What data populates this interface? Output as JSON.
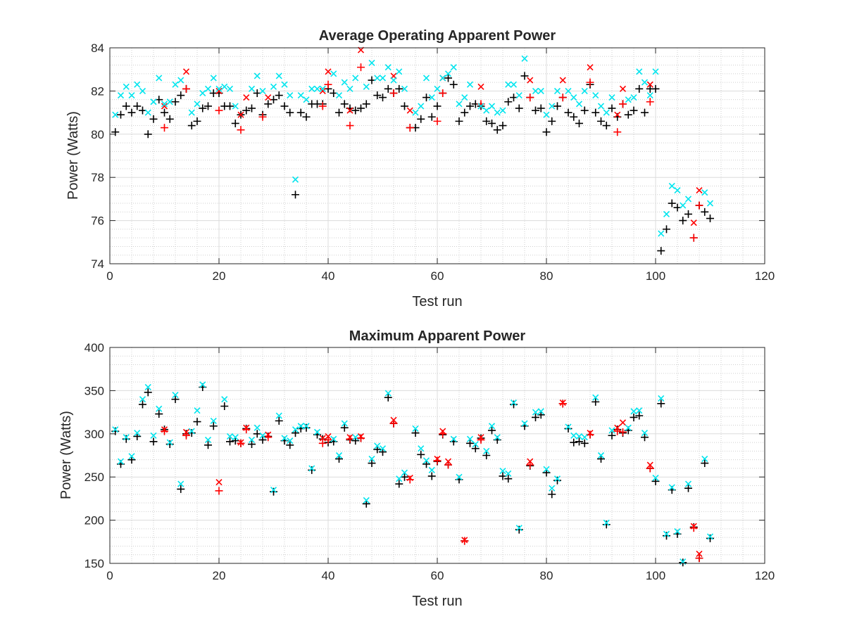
{
  "chart_data": [
    {
      "type": "scatter",
      "title": "Average Operating Apparent Power",
      "xlabel": "Test run",
      "ylabel": "Power (Watts)",
      "xlim": [
        0,
        120
      ],
      "ylim": [
        74,
        84
      ],
      "xticks": [
        "0",
        "20",
        "40",
        "60",
        "80",
        "100",
        "120"
      ],
      "yticks": [
        "74",
        "76",
        "78",
        "80",
        "82",
        "84"
      ],
      "grid": true,
      "minor_grid": true,
      "legend": "none",
      "series": [
        {
          "marker": "+",
          "color": "#000000",
          "values": [
            80.1,
            80.9,
            81.3,
            81.0,
            81.3,
            81.1,
            80.0,
            80.7,
            81.6,
            81.0,
            80.7,
            81.5,
            81.8,
            82.1,
            80.4,
            80.6,
            81.2,
            81.3,
            81.9,
            81.9,
            81.3,
            81.3,
            80.5,
            80.9,
            81.1,
            81.2,
            81.9,
            80.9,
            81.4,
            81.6,
            81.8,
            81.3,
            81.0,
            77.2,
            81.0,
            80.8,
            81.4,
            81.4,
            81.4,
            82.1,
            81.9,
            81.0,
            81.4,
            81.2,
            81.1,
            81.2,
            81.4,
            82.5,
            81.8,
            81.7,
            82.1,
            81.9,
            82.1,
            81.3,
            80.3,
            80.3,
            80.7,
            81.7,
            80.8,
            81.3,
            81.9,
            82.6,
            82.3,
            80.6,
            81.0,
            81.3,
            81.4,
            81.3,
            80.6,
            80.5,
            80.2,
            80.4,
            81.5,
            81.7,
            81.2,
            82.7,
            81.7,
            81.1,
            81.2,
            80.1,
            80.6,
            81.3,
            81.7,
            81.0,
            80.8,
            80.5,
            81.1,
            82.3,
            81.0,
            80.6,
            80.4,
            81.2,
            80.8,
            81.4,
            80.9,
            81.1,
            82.1,
            81.0,
            82.1,
            82.1,
            74.6,
            75.6,
            76.8,
            76.6,
            76.0,
            76.3,
            75.2,
            76.7,
            76.4,
            76.1
          ]
        },
        {
          "marker": "x",
          "color": "#ff0000",
          "values": [
            null,
            null,
            null,
            null,
            null,
            null,
            null,
            null,
            null,
            81.3,
            null,
            null,
            null,
            82.9,
            null,
            null,
            null,
            null,
            null,
            82.0,
            null,
            null,
            null,
            80.9,
            81.7,
            null,
            null,
            null,
            81.7,
            null,
            null,
            null,
            null,
            null,
            null,
            null,
            null,
            null,
            82.0,
            82.9,
            null,
            null,
            null,
            81.1,
            null,
            83.9,
            null,
            null,
            null,
            null,
            null,
            82.7,
            null,
            null,
            81.1,
            null,
            null,
            null,
            null,
            null,
            82.6,
            null,
            null,
            null,
            null,
            null,
            null,
            82.2,
            null,
            null,
            null,
            null,
            null,
            null,
            null,
            null,
            82.5,
            null,
            null,
            null,
            null,
            null,
            82.5,
            null,
            null,
            null,
            null,
            83.1,
            null,
            null,
            null,
            null,
            80.9,
            82.1,
            null,
            null,
            null,
            null,
            82.3,
            null,
            null,
            null,
            null,
            null,
            null,
            null,
            75.9,
            77.4,
            null,
            null
          ]
        },
        {
          "marker": "+",
          "color": "#ff0000",
          "values": [
            null,
            null,
            null,
            null,
            null,
            null,
            null,
            null,
            null,
            80.3,
            null,
            null,
            null,
            82.1,
            null,
            null,
            null,
            null,
            null,
            81.1,
            null,
            null,
            null,
            80.2,
            null,
            null,
            null,
            80.8,
            null,
            null,
            null,
            null,
            null,
            null,
            null,
            null,
            null,
            null,
            81.3,
            82.3,
            null,
            null,
            null,
            80.4,
            null,
            83.1,
            null,
            null,
            null,
            null,
            null,
            81.9,
            null,
            null,
            80.3,
            null,
            null,
            null,
            null,
            80.6,
            81.9,
            null,
            null,
            null,
            null,
            null,
            null,
            81.4,
            null,
            null,
            null,
            null,
            null,
            null,
            null,
            null,
            81.7,
            null,
            null,
            null,
            null,
            null,
            81.7,
            null,
            null,
            null,
            null,
            82.4,
            null,
            null,
            null,
            null,
            80.1,
            81.4,
            null,
            null,
            null,
            null,
            81.5,
            null,
            null,
            null,
            null,
            null,
            null,
            null,
            75.2,
            76.7,
            null,
            null
          ]
        },
        {
          "marker": "x",
          "color": "#00e5ee",
          "values": [
            80.9,
            81.8,
            82.2,
            81.8,
            82.3,
            82.0,
            81.0,
            81.5,
            82.6,
            81.4,
            81.5,
            82.3,
            82.5,
            null,
            81.0,
            81.4,
            81.9,
            82.1,
            82.6,
            82.1,
            82.2,
            82.1,
            81.3,
            null,
            null,
            82.1,
            82.7,
            82.0,
            null,
            82.2,
            82.7,
            82.3,
            81.8,
            77.9,
            81.8,
            81.6,
            82.1,
            82.1,
            82.1,
            null,
            82.8,
            81.8,
            82.4,
            82.1,
            82.6,
            null,
            82.2,
            83.3,
            82.6,
            82.6,
            83.1,
            82.5,
            82.9,
            82.1,
            null,
            81.0,
            81.3,
            82.6,
            81.7,
            82.1,
            82.6,
            82.8,
            83.1,
            81.4,
            81.7,
            82.3,
            null,
            81.3,
            81.1,
            81.3,
            81.0,
            81.1,
            82.3,
            82.3,
            81.8,
            83.5,
            null,
            82.0,
            82.0,
            80.9,
            81.3,
            82.0,
            null,
            82.0,
            81.7,
            81.4,
            82.0,
            null,
            81.8,
            81.3,
            81.0,
            81.7,
            null,
            null,
            81.6,
            81.7,
            82.9,
            82.4,
            81.8,
            82.9,
            75.4,
            76.3,
            77.6,
            77.4,
            76.7,
            77.0,
            null,
            null,
            77.3,
            76.8
          ]
        }
      ]
    },
    {
      "type": "scatter",
      "title": "Maximum Apparent Power",
      "xlabel": "Test run",
      "ylabel": "Power (Watts)",
      "xlim": [
        0,
        120
      ],
      "ylim": [
        150,
        400
      ],
      "xticks": [
        "0",
        "20",
        "40",
        "60",
        "80",
        "100",
        "120"
      ],
      "yticks": [
        "150",
        "200",
        "250",
        "300",
        "350",
        "400"
      ],
      "grid": true,
      "minor_grid": true,
      "legend": "none",
      "series": [
        {
          "marker": "+",
          "color": "#000000",
          "values": [
            303,
            265,
            294,
            270,
            297,
            334,
            348,
            291,
            323,
            305,
            288,
            340,
            236,
            300,
            301,
            314,
            354,
            287,
            309,
            null,
            332,
            291,
            292,
            289,
            306,
            288,
            300,
            293,
            297,
            233,
            315,
            292,
            287,
            301,
            306,
            307,
            258,
            299,
            294,
            290,
            291,
            271,
            307,
            293,
            292,
            295,
            219,
            266,
            282,
            279,
            342,
            312,
            242,
            250,
            null,
            301,
            276,
            265,
            251,
            268,
            299,
            264,
            291,
            247,
            176,
            289,
            283,
            295,
            275,
            304,
            293,
            251,
            248,
            334,
            189,
            309,
            263,
            319,
            322,
            255,
            230,
            246,
            335,
            306,
            290,
            291,
            289,
            299,
            337,
            271,
            195,
            298,
            305,
            301,
            304,
            319,
            321,
            296,
            260,
            245,
            335,
            182,
            235,
            184,
            151,
            237,
            192,
            156,
            266,
            179
          ]
        },
        {
          "marker": "x",
          "color": "#ff0000",
          "values": [
            null,
            null,
            null,
            null,
            null,
            null,
            null,
            null,
            null,
            305,
            null,
            null,
            null,
            302,
            null,
            null,
            null,
            null,
            null,
            244,
            null,
            null,
            null,
            290,
            307,
            null,
            null,
            null,
            299,
            null,
            null,
            null,
            null,
            null,
            null,
            null,
            null,
            null,
            295,
            297,
            null,
            null,
            null,
            296,
            null,
            297,
            null,
            null,
            null,
            null,
            null,
            316,
            null,
            null,
            249,
            null,
            null,
            null,
            null,
            271,
            303,
            268,
            null,
            null,
            177,
            null,
            null,
            296,
            null,
            null,
            null,
            null,
            null,
            null,
            null,
            null,
            268,
            null,
            null,
            null,
            null,
            null,
            336,
            null,
            null,
            null,
            null,
            301,
            null,
            null,
            null,
            null,
            307,
            313,
            null,
            null,
            null,
            null,
            264,
            null,
            null,
            null,
            null,
            null,
            null,
            null,
            193,
            161,
            null,
            null
          ]
        },
        {
          "marker": "+",
          "color": "#ff0000",
          "values": [
            null,
            null,
            null,
            null,
            null,
            null,
            null,
            null,
            null,
            303,
            null,
            null,
            null,
            298,
            null,
            null,
            null,
            null,
            null,
            234,
            null,
            null,
            null,
            289,
            305,
            null,
            null,
            null,
            296,
            null,
            null,
            null,
            null,
            null,
            null,
            null,
            null,
            null,
            289,
            293,
            null,
            null,
            null,
            294,
            null,
            295,
            null,
            null,
            null,
            null,
            null,
            312,
            null,
            null,
            247,
            null,
            null,
            null,
            null,
            269,
            300,
            264,
            null,
            null,
            176,
            null,
            null,
            293,
            null,
            null,
            null,
            null,
            null,
            null,
            null,
            null,
            264,
            null,
            null,
            null,
            null,
            null,
            335,
            null,
            null,
            null,
            null,
            299,
            null,
            null,
            null,
            null,
            303,
            302,
            null,
            null,
            null,
            null,
            260,
            null,
            null,
            null,
            null,
            null,
            null,
            null,
            191,
            156,
            null,
            null
          ]
        },
        {
          "marker": "x",
          "color": "#00e5ee",
          "values": [
            305,
            268,
            296,
            274,
            301,
            340,
            354,
            298,
            329,
            null,
            290,
            345,
            242,
            null,
            303,
            327,
            357,
            293,
            315,
            null,
            340,
            297,
            296,
            null,
            null,
            293,
            307,
            298,
            null,
            235,
            321,
            295,
            292,
            305,
            309,
            309,
            260,
            302,
            null,
            null,
            294,
            275,
            312,
            null,
            296,
            null,
            223,
            271,
            286,
            283,
            347,
            null,
            248,
            255,
            null,
            306,
            283,
            269,
            258,
            null,
            null,
            null,
            294,
            250,
            null,
            294,
            288,
            null,
            280,
            309,
            296,
            257,
            254,
            336,
            191,
            312,
            null,
            325,
            326,
            259,
            237,
            248,
            null,
            308,
            298,
            297,
            296,
            null,
            342,
            275,
            197,
            304,
            null,
            null,
            307,
            326,
            327,
            301,
            null,
            249,
            341,
            184,
            238,
            187,
            152,
            242,
            null,
            null,
            271,
            181
          ]
        }
      ]
    }
  ]
}
